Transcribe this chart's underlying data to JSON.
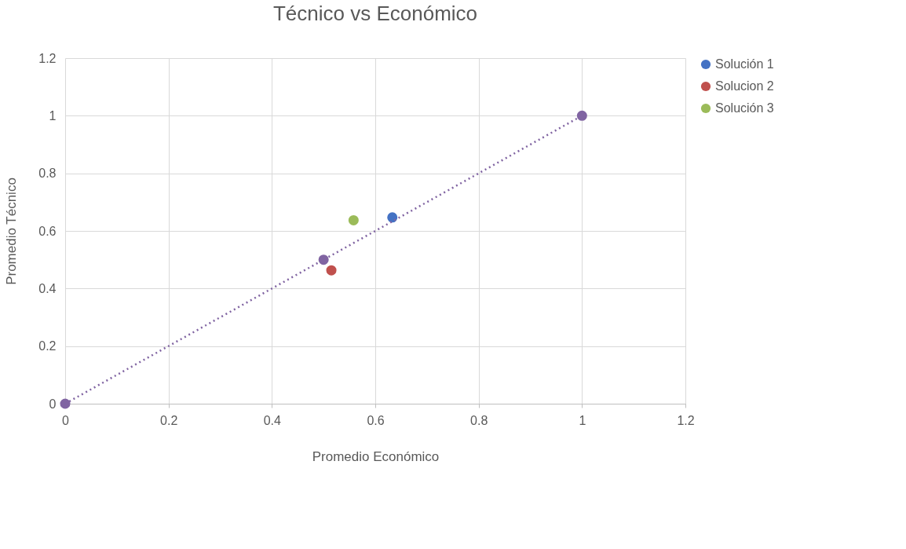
{
  "chart_data": {
    "type": "scatter",
    "title": "Técnico vs Económico",
    "xlabel": "Promedio Económico",
    "ylabel": "Promedio Técnico",
    "xlim": [
      0,
      1.2
    ],
    "xticks": [
      0,
      0.2,
      0.4,
      0.6,
      0.8,
      1,
      1.2
    ],
    "ylim": [
      0,
      1.2
    ],
    "yticks": [
      0,
      0.2,
      0.4,
      0.6,
      0.8,
      1,
      1.2
    ],
    "grid": true,
    "legend": "right",
    "marker": "circle",
    "series": [
      {
        "name": "Solución 1",
        "color": "#4472c4",
        "x": [
          0.633
        ],
        "values": [
          0.647
        ]
      },
      {
        "name": "Solucion 2",
        "color": "#c0504d",
        "x": [
          0.515
        ],
        "values": [
          0.463
        ]
      },
      {
        "name": "Solución 3",
        "color": "#9bbb59",
        "x": [
          0.558
        ],
        "values": [
          0.637
        ]
      },
      {
        "type": "line",
        "color": "#8064a2",
        "line_style": "dotted",
        "marker": "circle",
        "x": [
          0,
          0.5,
          1
        ],
        "values": [
          0,
          0.5,
          1
        ]
      }
    ]
  }
}
